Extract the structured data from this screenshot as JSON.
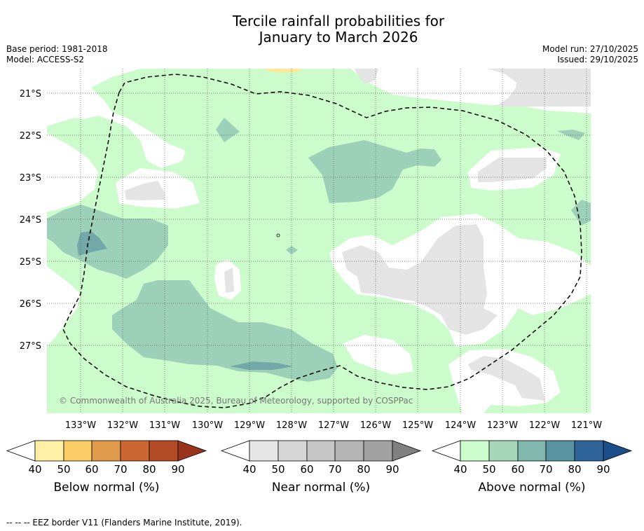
{
  "title": {
    "line1": "Tercile rainfall probabilities for",
    "line2": "January to March 2026"
  },
  "meta_left": {
    "base_period": "Base period: 1981-2018",
    "model": "Model: ACCESS-S2"
  },
  "meta_right": {
    "model_run": "Model run: 27/10/2025",
    "issued": "Issued: 29/10/2025"
  },
  "map": {
    "lon_labels": [
      "133°W",
      "132°W",
      "131°W",
      "130°W",
      "129°W",
      "128°W",
      "127°W",
      "126°W",
      "125°W",
      "124°W",
      "123°W",
      "122°W",
      "121°W"
    ],
    "lat_labels": [
      "21°S",
      "22°S",
      "23°S",
      "24°S",
      "25°S",
      "26°S",
      "27°S"
    ],
    "copyright": "© Commonwealth of Australia 2025, Bureau of Meteorology, supported by COSPPac",
    "colors": {
      "above_40": "#ccfccc",
      "above_50": "#9dd0b8",
      "above_60": "#72a8a8",
      "near_40": "#e4e4e4",
      "below_40": "#fcea9c"
    }
  },
  "colorbars": [
    {
      "label": "Below normal (%)",
      "ticks": [
        "40",
        "50",
        "60",
        "70",
        "80",
        "90"
      ],
      "colors": [
        "#ffffff",
        "#fff0a6",
        "#fccc66",
        "#e09a4c",
        "#cc6633",
        "#b24a26",
        "#9a331c"
      ]
    },
    {
      "label": "Near normal (%)",
      "ticks": [
        "40",
        "50",
        "60",
        "70",
        "80",
        "90"
      ],
      "colors": [
        "#ffffff",
        "#e6e6e6",
        "#d6d6d6",
        "#c6c6c6",
        "#b4b4b4",
        "#a2a2a2",
        "#808080"
      ]
    },
    {
      "label": "Above normal (%)",
      "ticks": [
        "40",
        "50",
        "60",
        "70",
        "80",
        "90"
      ],
      "colors": [
        "#ffffff",
        "#ccfccc",
        "#a6d8b8",
        "#80b8ae",
        "#5993a2",
        "#2f6499",
        "#1c4e8a"
      ]
    }
  ],
  "footer": "-- -- -- EEZ border V11 (Flanders Marine Institute, 2019)."
}
